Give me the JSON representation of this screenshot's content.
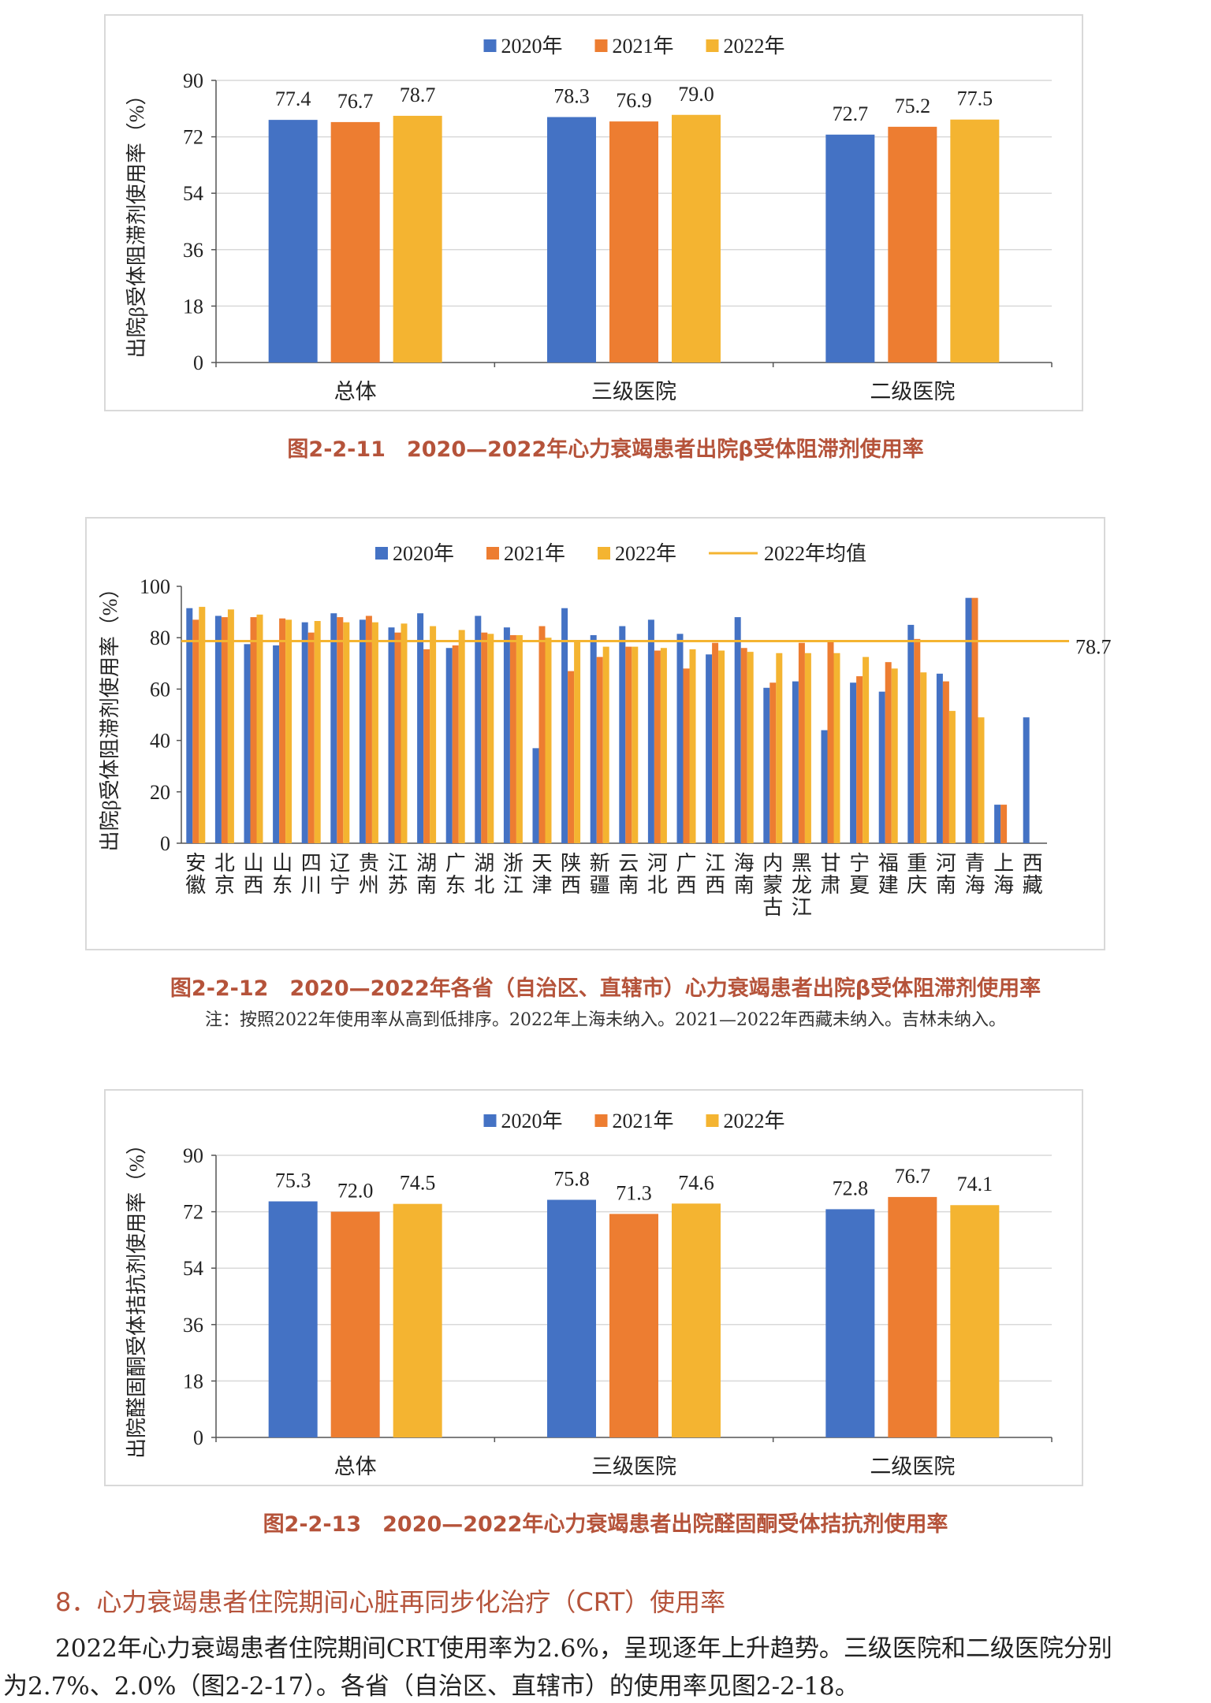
{
  "chart_data": [
    {
      "type": "bar",
      "caption": "图2-2-11　2020—2022年心力衰竭患者出院β受体阻滞剂使用率",
      "ylabel": "出院β受体阻滞剂使用率（%）",
      "ylim": [
        0,
        90
      ],
      "yticks": [
        0,
        18,
        36,
        54,
        72,
        90
      ],
      "categories": [
        "总体",
        "三级医院",
        "二级医院"
      ],
      "series": [
        {
          "name": "2020年",
          "color": "#4472c4",
          "values": [
            77.4,
            78.3,
            72.7
          ]
        },
        {
          "name": "2021年",
          "color": "#ed7d31",
          "values": [
            76.7,
            76.9,
            75.2
          ]
        },
        {
          "name": "2022年",
          "color": "#f4b431",
          "values": [
            78.7,
            79.0,
            77.5
          ]
        }
      ],
      "legend": "top",
      "data_labels": true
    },
    {
      "type": "bar",
      "caption": "图2-2-12　2020—2022年各省（自治区、直辖市）心力衰竭患者出院β受体阻滞剂使用率",
      "note": "注：按照2022年使用率从高到低排序。2022年上海未纳入。2021—2022年西藏未纳入。吉林未纳入。",
      "ylabel": "出院β受体阻滞剂使用率（%）",
      "ylim": [
        0,
        100
      ],
      "yticks": [
        0,
        20,
        40,
        60,
        80,
        100
      ],
      "categories": [
        "安徽",
        "北京",
        "山西",
        "山东",
        "四川",
        "辽宁",
        "贵州",
        "江苏",
        "湖南",
        "广东",
        "湖北",
        "浙江",
        "天津",
        "陕西",
        "新疆",
        "云南",
        "河北",
        "广西",
        "江西",
        "海南",
        "内蒙古",
        "黑龙江",
        "甘肃",
        "宁夏",
        "福建",
        "重庆",
        "河南",
        "青海",
        "上海",
        "西藏"
      ],
      "series": [
        {
          "name": "2020年",
          "color": "#4472c4",
          "values": [
            91.5,
            88.5,
            77.5,
            77.0,
            86.0,
            89.5,
            87.0,
            84.0,
            89.5,
            76.0,
            88.5,
            84.0,
            37.0,
            91.5,
            81.0,
            84.5,
            87.0,
            81.5,
            73.5,
            88.0,
            60.5,
            63.0,
            44.0,
            62.5,
            59.0,
            85.0,
            66.0,
            95.5,
            15.0,
            49.0
          ]
        },
        {
          "name": "2021年",
          "color": "#ed7d31",
          "values": [
            87.0,
            88.0,
            88.0,
            87.5,
            82.0,
            88.0,
            88.5,
            82.0,
            75.5,
            77.0,
            82.0,
            81.0,
            84.5,
            67.0,
            72.5,
            76.5,
            75.0,
            68.0,
            78.0,
            76.0,
            62.5,
            78.0,
            78.5,
            65.0,
            70.5,
            79.5,
            63.0,
            95.5,
            15.0,
            null
          ]
        },
        {
          "name": "2022年",
          "color": "#f4b431",
          "values": [
            92.0,
            91.0,
            89.0,
            87.0,
            86.5,
            86.0,
            86.0,
            85.5,
            84.5,
            83.0,
            81.5,
            81.0,
            80.0,
            79.0,
            76.5,
            76.5,
            76.0,
            75.5,
            75.0,
            74.5,
            74.0,
            74.0,
            74.0,
            72.5,
            68.0,
            66.5,
            51.5,
            49.0,
            null,
            null
          ]
        }
      ],
      "mean_line": {
        "name": "2022年均值",
        "value": 78.7,
        "label": "78.7",
        "color": "#f4b431"
      },
      "legend": "top",
      "data_labels": false
    },
    {
      "type": "bar",
      "caption": "图2-2-13　2020—2022年心力衰竭患者出院醛固酮受体拮抗剂使用率",
      "ylabel": "出院醛固酮受体拮抗剂使用率（%）",
      "ylim": [
        0,
        90
      ],
      "yticks": [
        0,
        18,
        36,
        54,
        72,
        90
      ],
      "categories": [
        "总体",
        "三级医院",
        "二级医院"
      ],
      "series": [
        {
          "name": "2020年",
          "color": "#4472c4",
          "values": [
            75.3,
            75.8,
            72.8
          ]
        },
        {
          "name": "2021年",
          "color": "#ed7d31",
          "values": [
            72.0,
            71.3,
            76.7
          ]
        },
        {
          "name": "2022年",
          "color": "#f4b431",
          "values": [
            74.5,
            74.6,
            74.1
          ]
        }
      ],
      "legend": "top",
      "data_labels": true
    }
  ],
  "section": {
    "heading": "8．心力衰竭患者住院期间心脏再同步化治疗（CRT）使用率",
    "line1": "2022年心力衰竭患者住院期间CRT使用率为2.6%，呈现逐年上升趋势。三级医院和二级医院分别",
    "line2": "为2.7%、2.0%（图2-2-17）。各省（自治区、直辖市）的使用率见图2-2-18。"
  }
}
